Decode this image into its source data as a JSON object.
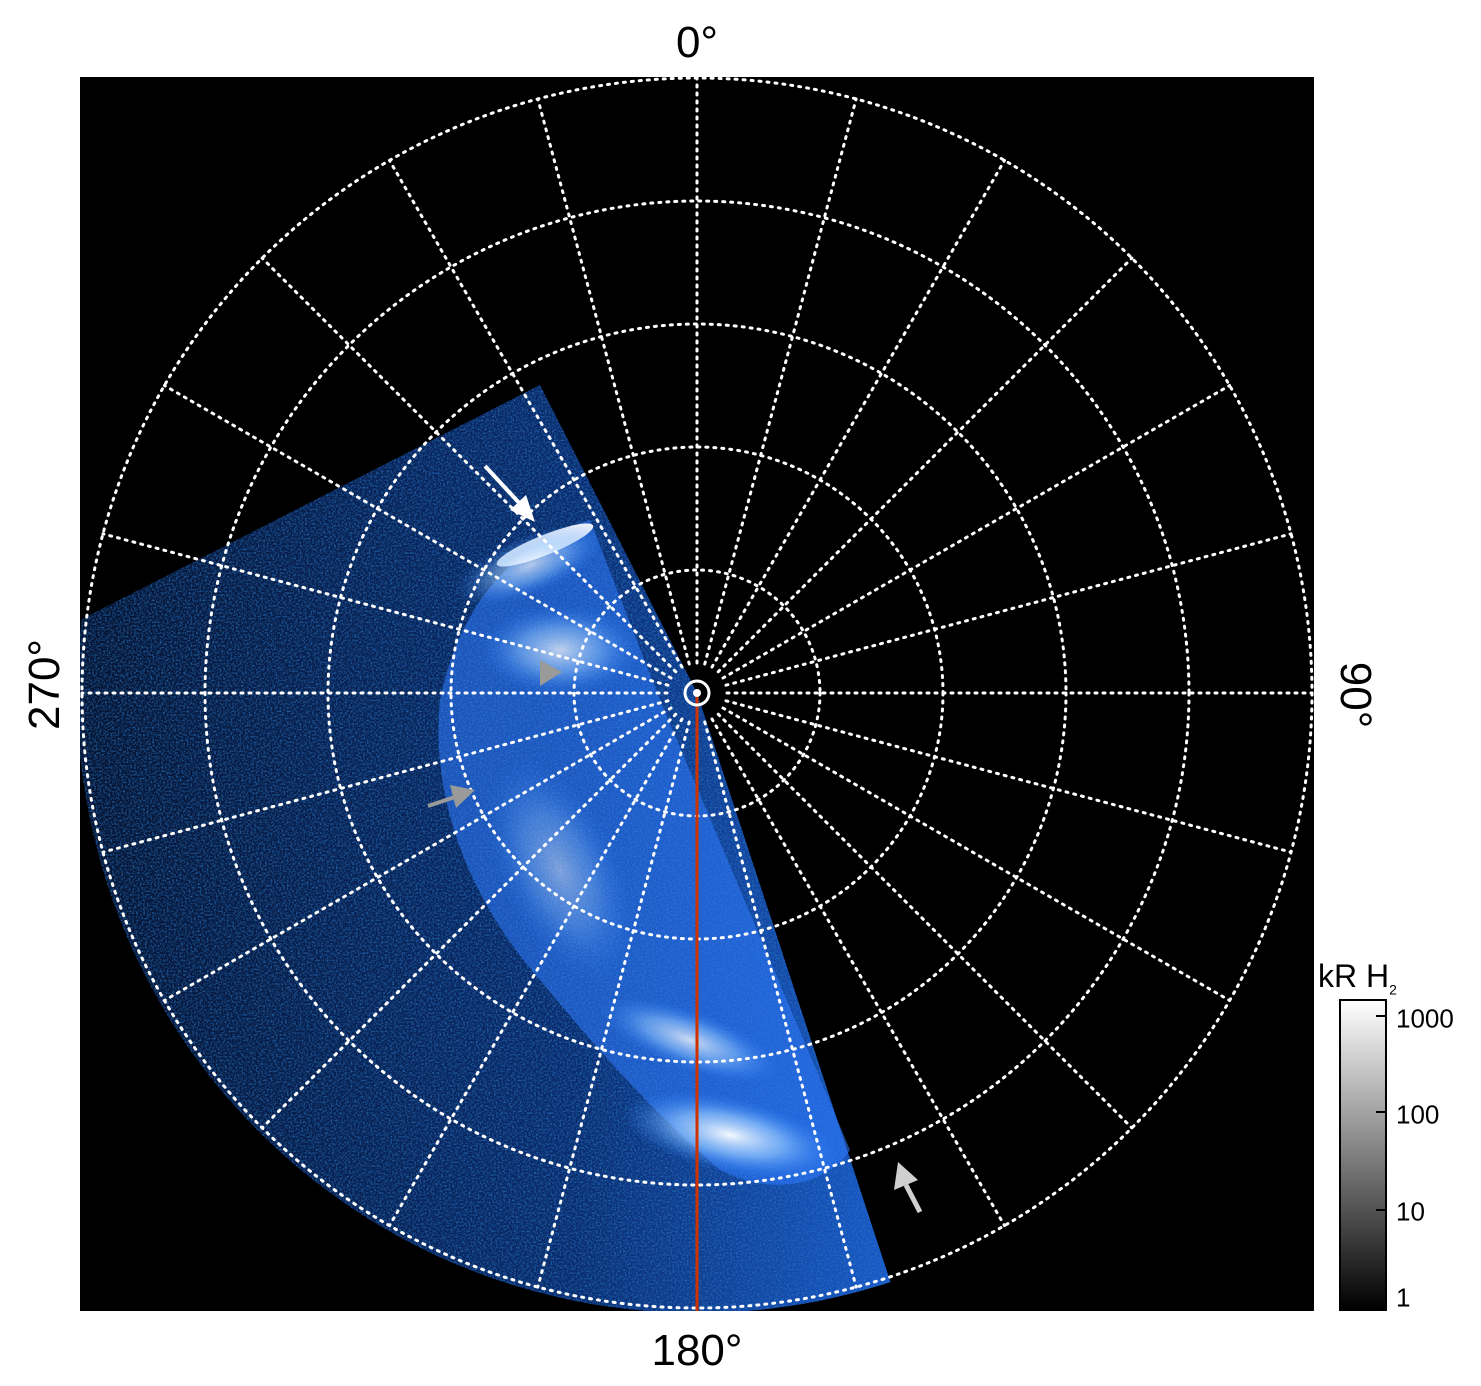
{
  "labels": {
    "top": "0°",
    "bottom": "180°",
    "left": "270°",
    "right": "90°"
  },
  "colorbar": {
    "title_main": "kR H",
    "title_sub": "2",
    "ticks": [
      "1000",
      "100",
      "10",
      "1"
    ]
  },
  "colors": {
    "background": "#000000",
    "grid": "#ffffff",
    "emission": "#2a7fff",
    "meridian_line": "#cc3300",
    "arrow_white": "#ffffff",
    "arrow_grey": "#aaaaaa"
  },
  "grid": {
    "rings": 5,
    "spokes": 24,
    "style": "dotted"
  }
}
